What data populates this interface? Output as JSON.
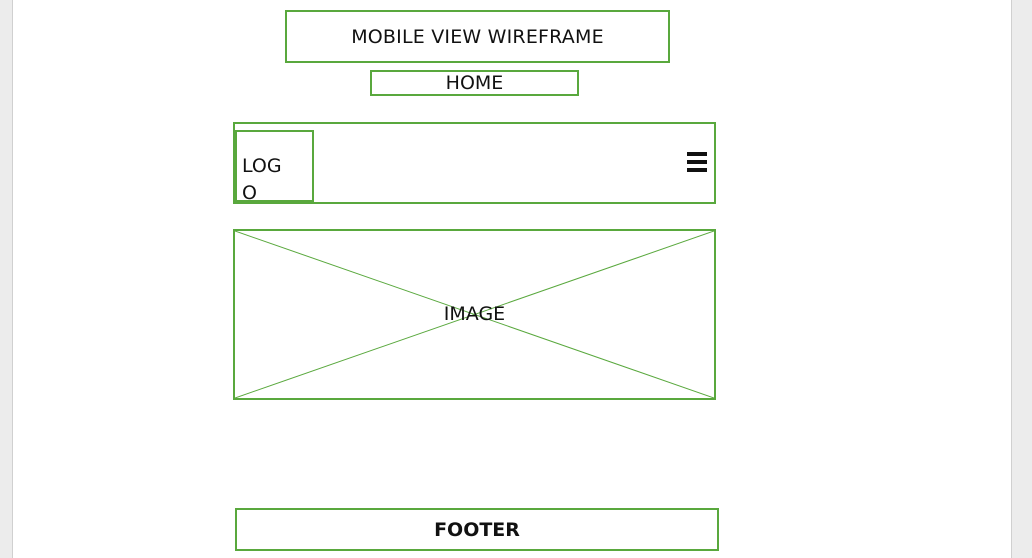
{
  "wireframe": {
    "title": "MOBILE VIEW WIREFRAME",
    "page_label": "HOME",
    "header": {
      "logo_text": "LOGO",
      "menu_icon": "hamburger-menu-icon"
    },
    "image_placeholder": {
      "label": "IMAGE"
    },
    "footer": {
      "label": "FOOTER"
    }
  },
  "colors": {
    "outline": "#59a83d",
    "text": "#111111",
    "background": "#ffffff"
  }
}
